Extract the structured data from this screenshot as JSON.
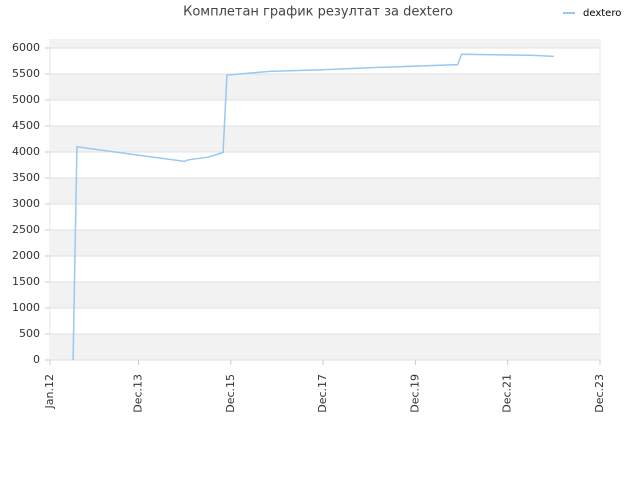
{
  "chart_data": {
    "type": "line",
    "title": "Комплетан график резултат за dextero",
    "x": [
      "2012-07",
      "2012-08",
      "2014-12",
      "2015-01",
      "2015-06",
      "2015-10",
      "2015-11",
      "2016-10",
      "2017-11",
      "2018-12",
      "2020-11",
      "2020-12",
      "2022-06",
      "2022-12"
    ],
    "series": [
      {
        "name": "dextero",
        "color": "#99c8f0",
        "values": [
          0,
          4100,
          3820,
          3850,
          3900,
          3990,
          5480,
          5550,
          5580,
          5620,
          5680,
          5880,
          5860,
          5840
        ]
      }
    ],
    "xlim": [
      "2012-01",
      "2023-12"
    ],
    "xticks": [
      {
        "value": "2012-01",
        "label": "Jan.12"
      },
      {
        "value": "2013-12",
        "label": "Dec.13"
      },
      {
        "value": "2015-12",
        "label": "Dec.15"
      },
      {
        "value": "2017-12",
        "label": "Dec.17"
      },
      {
        "value": "2019-12",
        "label": "Dec.19"
      },
      {
        "value": "2021-12",
        "label": "Dec.21"
      },
      {
        "value": "2023-12",
        "label": "Dec.23"
      }
    ],
    "ylim": [
      0,
      6000
    ],
    "yticks": [
      0,
      500,
      1000,
      1500,
      2000,
      2500,
      3000,
      3500,
      4000,
      4500,
      5000,
      5500,
      6000
    ],
    "grid": true,
    "legend": "top-right"
  }
}
